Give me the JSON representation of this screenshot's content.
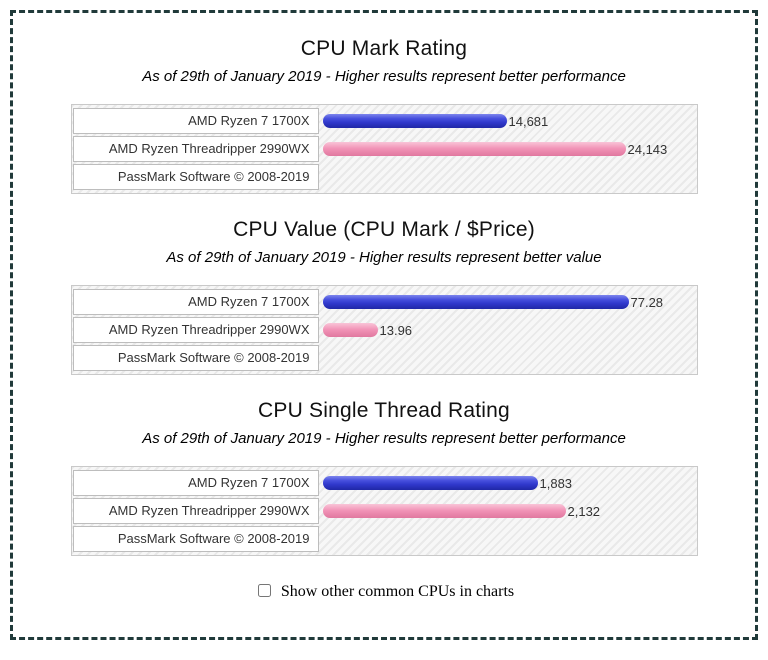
{
  "page": {
    "border_color": "#203a3a",
    "checkbox": {
      "label": "Show other common CPUs in charts",
      "checked": false
    }
  },
  "colors": {
    "bar_blue": "#3038cc",
    "bar_pink": "#f192b6",
    "hatch_light": "#f7f7f7",
    "hatch_dark": "#e9e9e9"
  },
  "chart_data": [
    {
      "type": "bar",
      "orientation": "horizontal",
      "title": "CPU Mark Rating",
      "subtitle": "As of 29th of January 2019 - Higher results represent better performance",
      "footer": "PassMark Software © 2008-2019",
      "categories": [
        "AMD Ryzen 7 1700X",
        "AMD Ryzen Threadripper 2990WX"
      ],
      "values": [
        14681,
        24143
      ],
      "value_labels": [
        "14,681",
        "24,143"
      ],
      "bar_colors": [
        "blue",
        "pink"
      ],
      "axis_max": 30000,
      "grid": false,
      "legend": "none"
    },
    {
      "type": "bar",
      "orientation": "horizontal",
      "title": "CPU Value (CPU Mark / $Price)",
      "subtitle": "As of 29th of January 2019 - Higher results represent better value",
      "footer": "PassMark Software © 2008-2019",
      "categories": [
        "AMD Ryzen 7 1700X",
        "AMD Ryzen Threadripper 2990WX"
      ],
      "values": [
        77.28,
        13.96
      ],
      "value_labels": [
        "77.28",
        "13.96"
      ],
      "bar_colors": [
        "blue",
        "pink"
      ],
      "axis_max": 95,
      "grid": false,
      "legend": "none"
    },
    {
      "type": "bar",
      "orientation": "horizontal",
      "title": "CPU Single Thread Rating",
      "subtitle": "As of 29th of January 2019 - Higher results represent better performance",
      "footer": "PassMark Software © 2008-2019",
      "categories": [
        "AMD Ryzen 7 1700X",
        "AMD Ryzen Threadripper 2990WX"
      ],
      "values": [
        1883,
        2132
      ],
      "value_labels": [
        "1,883",
        "2,132"
      ],
      "bar_colors": [
        "blue",
        "pink"
      ],
      "axis_max": 3300,
      "grid": false,
      "legend": "none"
    }
  ]
}
